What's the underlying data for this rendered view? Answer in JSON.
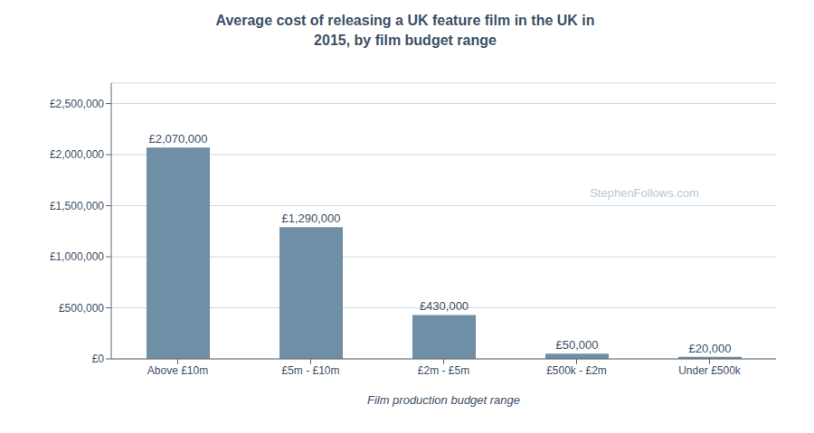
{
  "chart_data": {
    "type": "bar",
    "title": "Average cost of releasing a UK feature film in the UK in\n2015, by film budget range",
    "x_label": "Film production budget range",
    "categories": [
      "Above £10m",
      "£5m - £10m",
      "£2m - £5m",
      "£500k - £2m",
      "Under £500k"
    ],
    "values": [
      2070000,
      1290000,
      430000,
      50000,
      20000
    ],
    "value_labels": [
      "£2,070,000",
      "£1,290,000",
      "£430,000",
      "£50,000",
      "£20,000"
    ],
    "data_labels": true,
    "color": "#6e8fa6",
    "ylim": [
      0,
      2700000
    ],
    "yticks": [
      {
        "value": 0,
        "label": "£0"
      },
      {
        "value": 500000,
        "label": "£500,000"
      },
      {
        "value": 1000000,
        "label": "£1,000,000"
      },
      {
        "value": 1500000,
        "label": "£1,500,000"
      },
      {
        "value": 2000000,
        "label": "£2,000,000"
      },
      {
        "value": 2500000,
        "label": "£2,500,000"
      }
    ],
    "grid": true,
    "annotations": [
      "StephenFollows.com"
    ]
  }
}
